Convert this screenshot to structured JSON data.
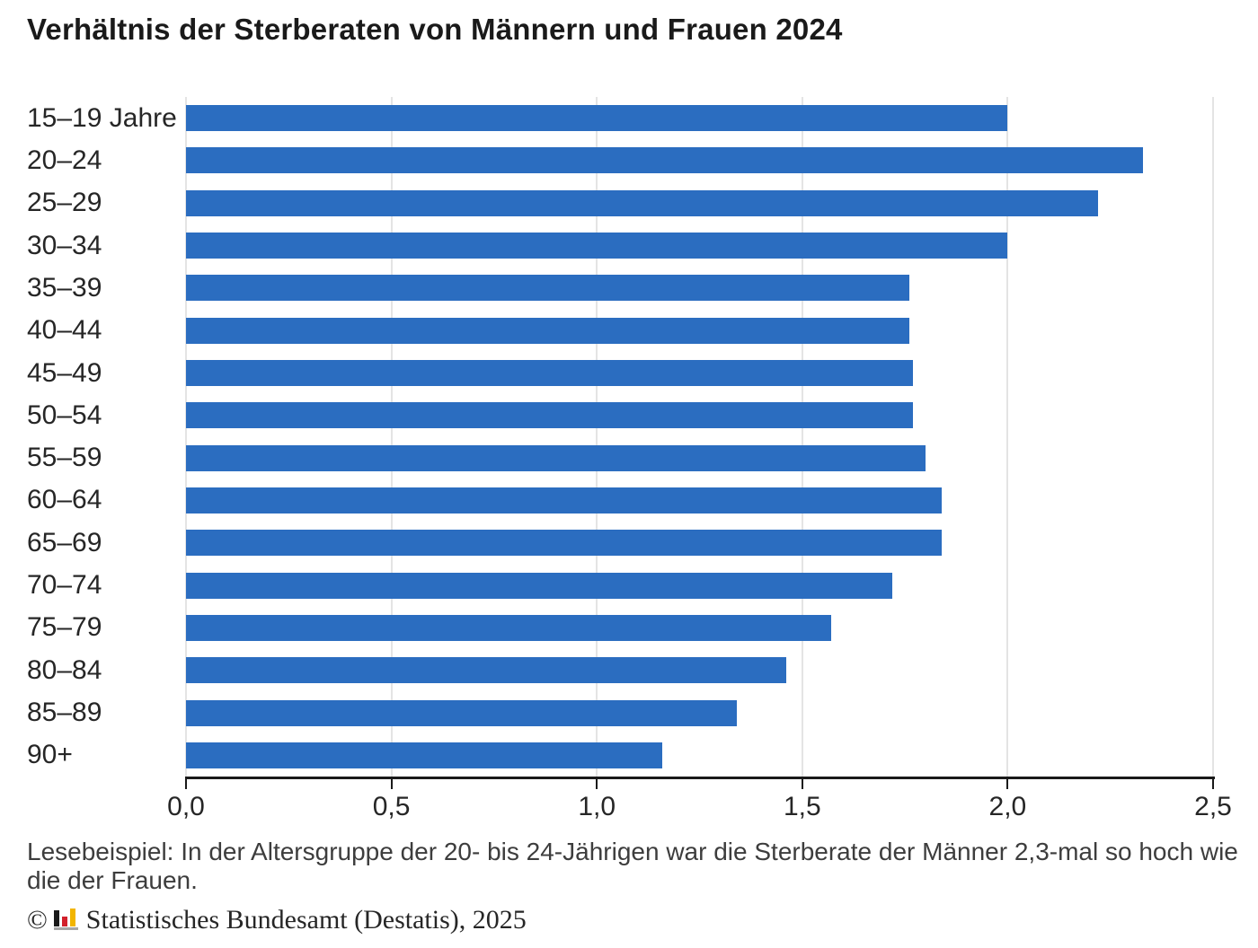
{
  "chart_data": {
    "type": "bar",
    "orientation": "horizontal",
    "title": "Verhältnis der Sterberaten von Männern und Frauen 2024",
    "categories": [
      "15–19 Jahre",
      "20–24",
      "25–29",
      "30–34",
      "35–39",
      "40–44",
      "45–49",
      "50–54",
      "55–59",
      "60–64",
      "65–69",
      "70–74",
      "75–79",
      "80–84",
      "85–89",
      "90+"
    ],
    "values": [
      2.0,
      2.33,
      2.22,
      2.0,
      1.76,
      1.76,
      1.77,
      1.77,
      1.8,
      1.84,
      1.84,
      1.72,
      1.57,
      1.46,
      1.34,
      1.16
    ],
    "xlabel": "",
    "ylabel": "",
    "xlim": [
      0,
      2.5
    ],
    "x_tick_values": [
      0,
      0.5,
      1,
      1.5,
      2,
      2.5
    ],
    "x_tick_labels": [
      "0,0",
      "0,5",
      "1,0",
      "1,5",
      "2,0",
      "2,5"
    ],
    "grid": "vertical-light-gray",
    "legend": "none",
    "bar_color": "#2b6dc0"
  },
  "caption": "Lesebeispiel: In der Altersgruppe der 20- bis 24-Jährigen war die Sterberate der Männer 2,3-mal so hoch wie die der Frauen.",
  "footer": {
    "copyright": "©",
    "text": "Statistisches Bundesamt (Destatis), 2025",
    "logo": {
      "icon": "destatis-bars-logo",
      "black": "#1a1a1a",
      "red": "#d2202b",
      "gold": "#f2b500",
      "base": "#a6a6a6"
    }
  }
}
